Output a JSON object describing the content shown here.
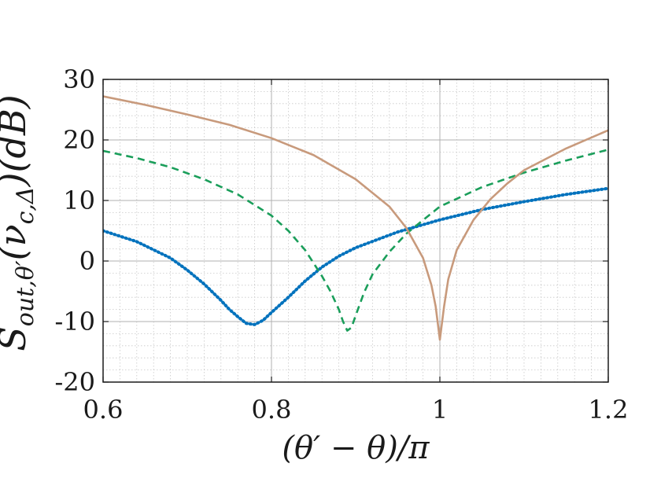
{
  "chart_data": {
    "type": "line",
    "xlabel": "(θ′ − θ)/π",
    "ylabel": "S_{out,θ′}(ν_{c,Δ})(dB)",
    "xlim": [
      0.6,
      1.2
    ],
    "ylim": [
      -20,
      30
    ],
    "xticks": [
      0.6,
      0.8,
      1.0,
      1.2
    ],
    "xtick_labels": [
      "0.6",
      "0.8",
      "1",
      "1.2"
    ],
    "yticks": [
      -20,
      -10,
      0,
      10,
      20,
      30
    ],
    "ytick_labels": [
      "-20",
      "-10",
      "0",
      "10",
      "20",
      "30"
    ],
    "grid": true,
    "minor_grid": true,
    "legend": "none",
    "series": [
      {
        "color": "#0072bd",
        "style": "dotted",
        "x": [
          0.6,
          0.64,
          0.68,
          0.7,
          0.72,
          0.74,
          0.75,
          0.76,
          0.77,
          0.78,
          0.79,
          0.8,
          0.82,
          0.84,
          0.86,
          0.88,
          0.9,
          0.95,
          1.0,
          1.05,
          1.1,
          1.15,
          1.2
        ],
        "y": [
          5.0,
          3.2,
          0.5,
          -1.5,
          -3.8,
          -6.5,
          -8.0,
          -9.2,
          -10.3,
          -10.5,
          -9.8,
          -8.5,
          -6.0,
          -3.3,
          -1.0,
          0.8,
          2.2,
          4.8,
          6.8,
          8.5,
          9.8,
          11.0,
          12.0
        ]
      },
      {
        "color": "#1a9e5a",
        "style": "dashed",
        "x": [
          0.6,
          0.64,
          0.68,
          0.72,
          0.76,
          0.8,
          0.82,
          0.84,
          0.86,
          0.87,
          0.88,
          0.885,
          0.89,
          0.895,
          0.9,
          0.91,
          0.92,
          0.94,
          0.96,
          1.0,
          1.05,
          1.1,
          1.15,
          1.2
        ],
        "y": [
          18.2,
          17.0,
          15.5,
          13.5,
          11.0,
          7.5,
          5.0,
          1.8,
          -2.5,
          -5.0,
          -8.0,
          -10.0,
          -11.5,
          -11.0,
          -9.0,
          -5.2,
          -2.2,
          1.5,
          4.5,
          9.0,
          12.2,
          14.6,
          16.6,
          18.4
        ]
      },
      {
        "color": "#c89a7c",
        "style": "solid",
        "x": [
          0.6,
          0.65,
          0.7,
          0.75,
          0.8,
          0.85,
          0.9,
          0.94,
          0.96,
          0.98,
          0.99,
          0.995,
          1.0,
          1.005,
          1.01,
          1.02,
          1.04,
          1.06,
          1.08,
          1.1,
          1.15,
          1.2
        ],
        "y": [
          27.2,
          25.8,
          24.2,
          22.5,
          20.3,
          17.5,
          13.5,
          9.0,
          5.5,
          0.5,
          -4.0,
          -7.5,
          -13.0,
          -7.5,
          -3.0,
          1.8,
          6.8,
          10.2,
          12.8,
          15.0,
          18.6,
          21.6
        ]
      }
    ]
  }
}
